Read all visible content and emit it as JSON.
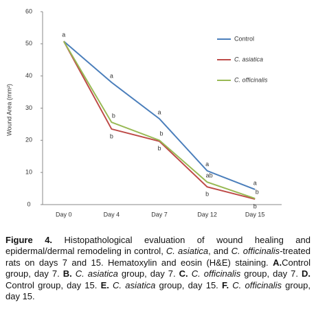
{
  "chart_data": {
    "type": "line",
    "y_label": "Wound Area (mm²)",
    "categories": [
      "Day 0",
      "Day 4",
      "Day 7",
      "Day 12",
      "Day 15"
    ],
    "ylim": [
      0,
      60
    ],
    "yticks": [
      0,
      10,
      20,
      30,
      40,
      50,
      60
    ],
    "legend": "upper right",
    "series": [
      {
        "name": "Control",
        "color": "#4a7ebb",
        "values": [
          50.8,
          38,
          26.7,
          10.5,
          4.7
        ],
        "letters": [
          "a",
          "a",
          "a",
          "a",
          "a"
        ]
      },
      {
        "name": "C. asiatica",
        "color": "#be4b48",
        "values": [
          50.8,
          23.5,
          19.7,
          5.5,
          1.7
        ],
        "letters": [
          null,
          "b",
          "b",
          "b",
          "b"
        ]
      },
      {
        "name": "C. officinalis",
        "color": "#98b954",
        "values": [
          50.8,
          25.6,
          20,
          7,
          1.9
        ],
        "letters": [
          null,
          "b",
          "b",
          "ab",
          "b"
        ]
      }
    ]
  },
  "caption": [
    "Figure 4.",
    " Histopathological evaluation of wound healing and epidermal/dermal remodeling in control, ",
    "C. asiatica",
    ", and ",
    "C. officinalis",
    "-treated rats on days 7 and 15. Hematoxylin and eosin (H&E) staining. ",
    "A.",
    "Control group, day 7. ",
    "B. ",
    "C. asiatica",
    " group, day 7. ",
    "C. ",
    "C. officinalis",
    " group, day 7. ",
    "D.",
    " Control group, day 15. ",
    "E. ",
    "C. asiatica",
    " group, day 15. ",
    "F. ",
    "C. officinalis",
    " group, day 15."
  ]
}
